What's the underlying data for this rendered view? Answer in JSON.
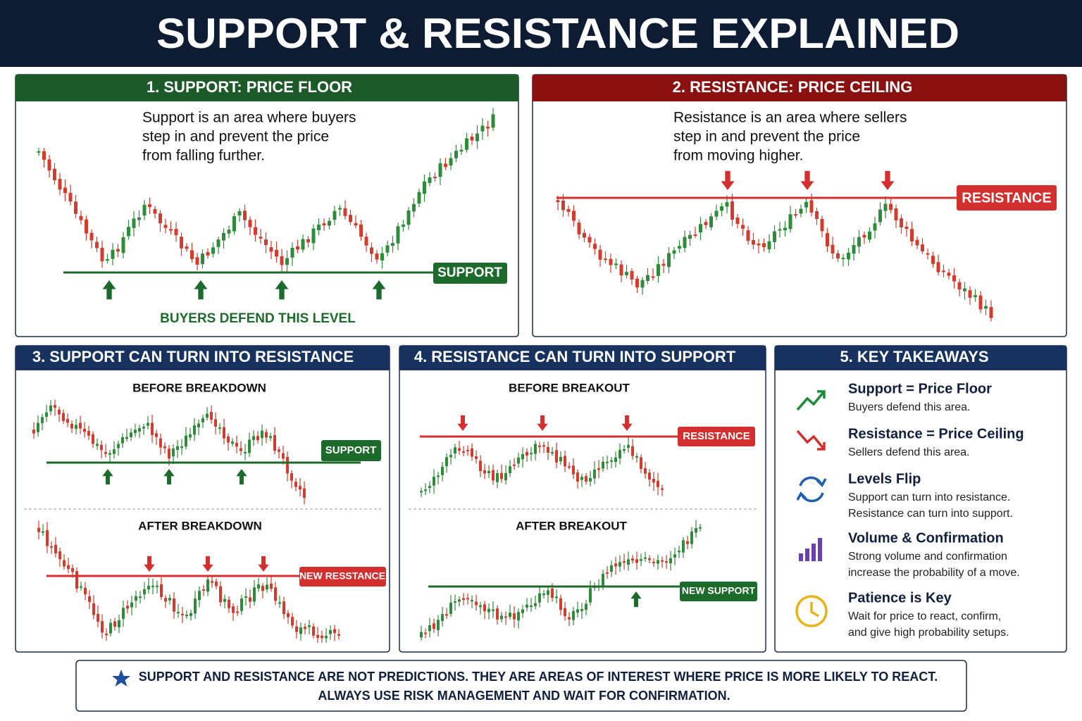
{
  "title": "SUPPORT & RESISTANCE EXPLAINED",
  "panels": [
    {
      "title": "1. SUPPORT: PRICE FLOOR",
      "text": [
        "Support is an area where buyers",
        "step in and prevent the price",
        "from falling further."
      ],
      "level_label": "SUPPORT",
      "caption": "BUYERS DEFEND THIS LEVEL"
    },
    {
      "title": "2. RESISTANCE: PRICE CEILING",
      "text": [
        "Resistance is an area where sellers",
        "step in and prevent the price",
        "from moving higher."
      ],
      "level_label": "RESISTANCE"
    },
    {
      "title": "3. SUPPORT CAN TURN INTO RESISTANCE",
      "before": {
        "title": "BEFORE BREAKDOWN",
        "level_label": "SUPPORT"
      },
      "after": {
        "title": "AFTER BREAKDOWN",
        "level_label": "NEW RESSTANCE"
      }
    },
    {
      "title": "4. RESISTANCE CAN TURN INTO SUPPORT",
      "before": {
        "title": "BEFORE BREAKOUT",
        "level_label": "RESISTANCE"
      },
      "after": {
        "title": "AFTER BREAKOUT",
        "level_label": "NEW SUPPORT"
      }
    }
  ],
  "takeaways": {
    "title": "5. KEY TAKEAWAYS",
    "items": [
      {
        "heading": "Support = Price Floor",
        "text": [
          "Buyers defend this area."
        ]
      },
      {
        "heading": "Resistance = Price Ceiling",
        "text": [
          "Sellers defend this area."
        ]
      },
      {
        "heading": "Levels Flip",
        "text": [
          "Support can turn into resistance.",
          "Resistance can turn into support."
        ]
      },
      {
        "heading": "Volume & Confirmation",
        "text": [
          "Strong volume and confirmation",
          "increase the probability of a move."
        ]
      },
      {
        "heading": "Patience is Key",
        "text": [
          "Wait for price to react, confirm,",
          "and give high probability setups."
        ]
      }
    ]
  },
  "footer": [
    "SUPPORT AND RESISTANCE ARE NOT PREDICTIONS. THEY ARE AREAS OF INTEREST WHERE PRICE IS MORE LIKELY TO REACT.",
    "ALWAYS USE RISK MANAGEMENT AND WAIT FOR CONFIRMATION."
  ]
}
